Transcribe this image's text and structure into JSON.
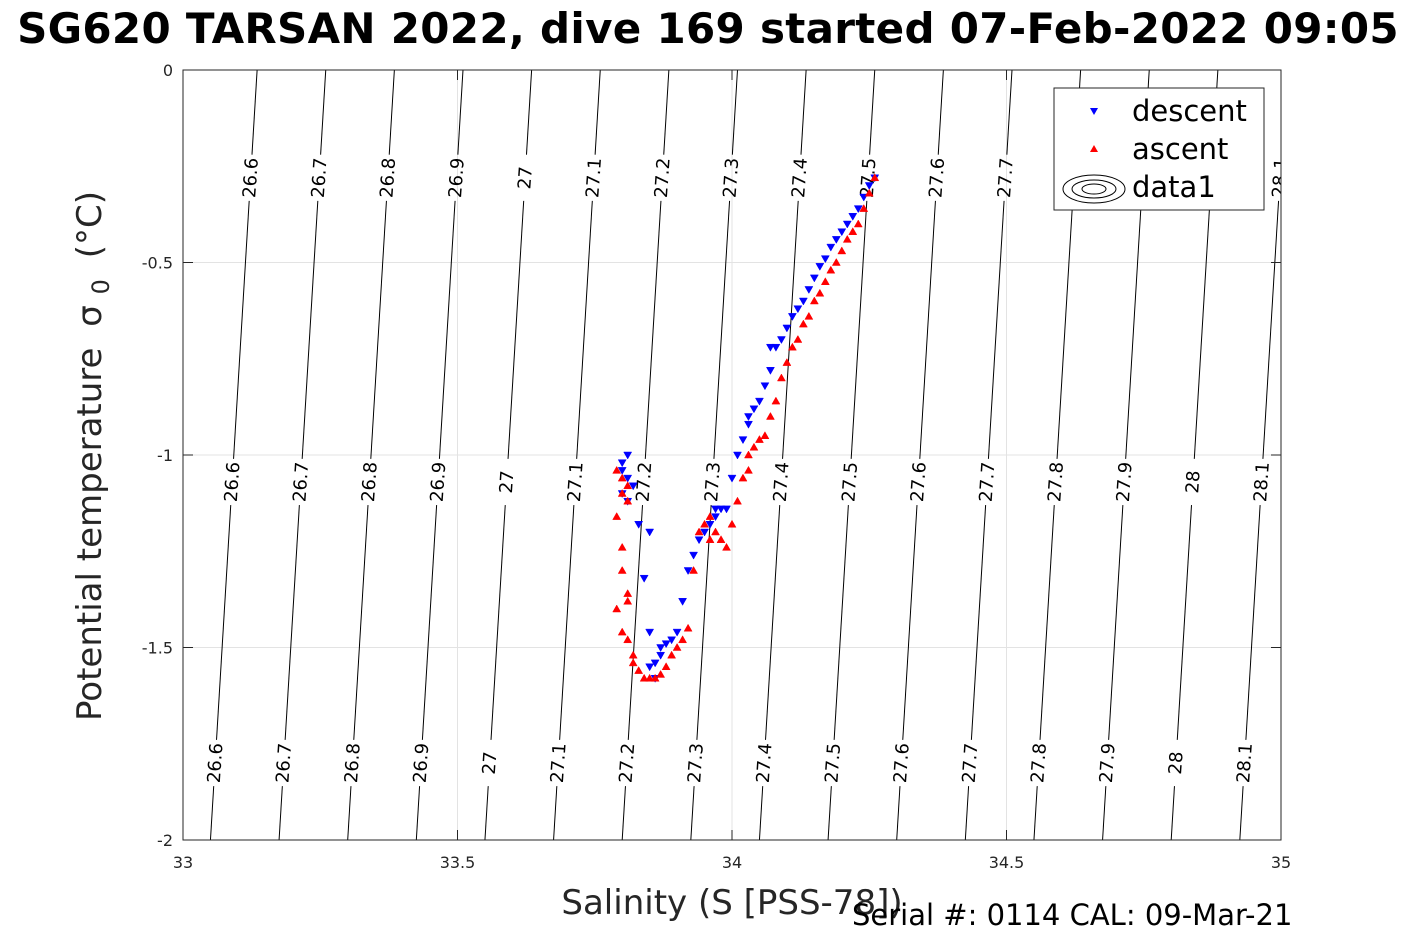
{
  "title": "SG620 TARSAN 2022, dive 169 started 07-Feb-2022 09:05",
  "footer": "Serial #: 0114  CAL: 09-Mar-21",
  "chart_data": {
    "type": "scatter",
    "xlabel": "Salinity (S [PSS-78])",
    "ylabel": "Potential temperature",
    "ylabel_symbol": "σ",
    "ylabel_subscript": "0",
    "ylabel_unit": "(°C)",
    "xlim": [
      33,
      35
    ],
    "ylim": [
      -2,
      0
    ],
    "xticks": [
      33,
      33.5,
      34,
      34.5,
      35
    ],
    "xtick_labels": [
      "33",
      "33.5",
      "34",
      "34.5",
      "35"
    ],
    "yticks": [
      -2,
      -1.5,
      -1,
      -0.5,
      0
    ],
    "ytick_labels": [
      "-2",
      "-1.5",
      "-1",
      "-0.5",
      "0"
    ],
    "grid": true,
    "legend_position": "top-right",
    "legend": [
      {
        "label": "descent",
        "marker": "triangle-down",
        "color": "#0000ff"
      },
      {
        "label": "ascent",
        "marker": "triangle-up",
        "color": "#ff0000"
      },
      {
        "label": "data1",
        "marker": "contour",
        "color": "#000000"
      }
    ],
    "contours": {
      "levels": [
        26.6,
        26.7,
        26.8,
        26.9,
        27,
        27.1,
        27.2,
        27.3,
        27.4,
        27.5,
        27.6,
        27.7,
        27.8,
        27.9,
        28,
        28.1
      ],
      "labels": [
        "26.6",
        "26.7",
        "26.8",
        "26.9",
        "27",
        "27.1",
        "27.2",
        "27.3",
        "27.4",
        "27.5",
        "27.6",
        "27.7",
        "27.8",
        "27.9",
        "28",
        "28.1"
      ],
      "salinity_at_theta0": [
        33.135,
        33.26,
        33.385,
        33.51,
        33.635,
        33.76,
        33.885,
        34.01,
        34.135,
        34.26,
        34.385,
        34.51,
        34.635,
        34.76,
        34.885,
        35.01
      ],
      "salinity_at_theta_minus2": [
        33.05,
        33.175,
        33.3,
        33.425,
        33.55,
        33.675,
        33.8,
        33.925,
        34.05,
        34.175,
        34.3,
        34.425,
        34.55,
        34.675,
        34.8,
        34.925
      ],
      "label_rows_theta": [
        -0.28,
        -1.07,
        -1.8
      ]
    },
    "series": [
      {
        "name": "descent",
        "color": "#0000ff",
        "marker": "triangle-down",
        "x": [
          33.81,
          33.8,
          33.8,
          33.81,
          33.82,
          33.8,
          33.81,
          33.83,
          33.85,
          33.84,
          33.85,
          33.86,
          33.85,
          33.86,
          33.87,
          33.87,
          33.88,
          33.89,
          33.9,
          33.91,
          33.92,
          33.93,
          33.94,
          33.95,
          33.96,
          33.97,
          33.97,
          33.98,
          33.99,
          34.0,
          34.01,
          34.02,
          34.03,
          34.03,
          34.04,
          34.05,
          34.06,
          34.07,
          34.07,
          34.08,
          34.09,
          34.1,
          34.11,
          34.12,
          34.13,
          34.14,
          34.15,
          34.16,
          34.17,
          34.18,
          34.19,
          34.2,
          34.21,
          34.22,
          34.23,
          34.24,
          34.25,
          34.26
        ],
        "y": [
          -1.0,
          -1.02,
          -1.04,
          -1.06,
          -1.08,
          -1.1,
          -1.12,
          -1.18,
          -1.2,
          -1.32,
          -1.46,
          -1.58,
          -1.55,
          -1.54,
          -1.52,
          -1.5,
          -1.49,
          -1.48,
          -1.46,
          -1.38,
          -1.3,
          -1.26,
          -1.22,
          -1.2,
          -1.18,
          -1.16,
          -1.14,
          -1.14,
          -1.14,
          -1.06,
          -1.0,
          -0.96,
          -0.92,
          -0.9,
          -0.88,
          -0.86,
          -0.82,
          -0.78,
          -0.72,
          -0.72,
          -0.7,
          -0.67,
          -0.64,
          -0.62,
          -0.6,
          -0.57,
          -0.54,
          -0.51,
          -0.49,
          -0.46,
          -0.44,
          -0.42,
          -0.4,
          -0.38,
          -0.36,
          -0.33,
          -0.3,
          -0.28
        ]
      },
      {
        "name": "ascent",
        "color": "#ff0000",
        "marker": "triangle-up",
        "x": [
          33.79,
          33.8,
          33.81,
          33.8,
          33.81,
          33.79,
          33.8,
          33.8,
          33.81,
          33.81,
          33.79,
          33.8,
          33.81,
          33.82,
          33.82,
          33.83,
          33.84,
          33.85,
          33.86,
          33.87,
          33.88,
          33.89,
          33.9,
          33.91,
          33.92,
          33.93,
          33.94,
          33.95,
          33.96,
          33.96,
          33.97,
          33.98,
          33.99,
          34.0,
          34.01,
          34.02,
          34.03,
          34.03,
          34.04,
          34.05,
          34.06,
          34.07,
          34.08,
          34.09,
          34.1,
          34.11,
          34.12,
          34.13,
          34.14,
          34.15,
          34.16,
          34.17,
          34.18,
          34.19,
          34.2,
          34.21,
          34.22,
          34.23,
          34.24,
          34.25,
          34.26
        ],
        "y": [
          -1.04,
          -1.06,
          -1.08,
          -1.1,
          -1.12,
          -1.16,
          -1.24,
          -1.3,
          -1.36,
          -1.38,
          -1.4,
          -1.46,
          -1.48,
          -1.52,
          -1.54,
          -1.56,
          -1.58,
          -1.58,
          -1.58,
          -1.57,
          -1.55,
          -1.52,
          -1.5,
          -1.48,
          -1.45,
          -1.3,
          -1.2,
          -1.18,
          -1.16,
          -1.22,
          -1.2,
          -1.22,
          -1.24,
          -1.18,
          -1.12,
          -1.06,
          -1.04,
          -1.0,
          -0.98,
          -0.96,
          -0.95,
          -0.9,
          -0.86,
          -0.8,
          -0.76,
          -0.72,
          -0.7,
          -0.66,
          -0.64,
          -0.6,
          -0.58,
          -0.55,
          -0.52,
          -0.5,
          -0.47,
          -0.44,
          -0.42,
          -0.4,
          -0.36,
          -0.32,
          -0.28
        ]
      }
    ]
  }
}
